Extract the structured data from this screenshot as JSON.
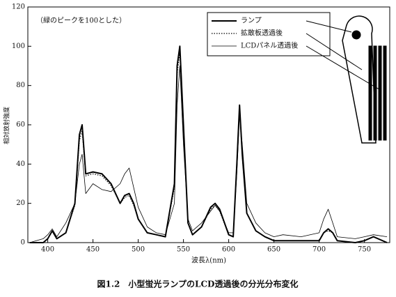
{
  "chart_data": {
    "type": "line",
    "title": "図1.2　小型蛍光ランプのLCD透過後の分光分布変化",
    "annotation": "（緑のピークを100とした）",
    "xlabel": "波長λ(nm)",
    "ylabel": "相対放射強度",
    "x": [
      380,
      395,
      400,
      405,
      410,
      420,
      430,
      435,
      438,
      442,
      450,
      460,
      470,
      480,
      485,
      490,
      495,
      500,
      510,
      520,
      530,
      540,
      543,
      546,
      550,
      555,
      560,
      570,
      580,
      585,
      590,
      600,
      605,
      609,
      612,
      615,
      620,
      630,
      640,
      650,
      660,
      680,
      700,
      705,
      710,
      715,
      720,
      740,
      750,
      760,
      775
    ],
    "series": [
      {
        "name": "ランプ",
        "color": "#000000",
        "linestyle": "solid",
        "linewidth": 2,
        "values": [
          0,
          0,
          2,
          6,
          2,
          5,
          20,
          55,
          60,
          35,
          36,
          35,
          30,
          20,
          24,
          25,
          20,
          12,
          5,
          4,
          3,
          30,
          90,
          100,
          60,
          10,
          4,
          8,
          18,
          20,
          17,
          4,
          3,
          40,
          70,
          45,
          15,
          6,
          3,
          1,
          1,
          1,
          1,
          5,
          7,
          5,
          1,
          0,
          1,
          3,
          0
        ]
      },
      {
        "name": "拡散板透過後",
        "color": "#000000",
        "linestyle": "dotted",
        "linewidth": 1.2,
        "values": [
          0,
          0,
          2,
          6,
          2,
          5,
          19,
          52,
          57,
          34,
          35,
          34,
          29,
          20,
          23,
          24,
          19,
          12,
          5,
          4,
          3,
          28,
          86,
          97,
          58,
          10,
          4,
          8,
          17,
          19,
          16,
          4,
          3,
          38,
          68,
          44,
          15,
          6,
          3,
          1,
          1,
          1,
          1,
          5,
          6,
          5,
          1,
          0,
          1,
          3,
          0
        ]
      },
      {
        "name": "LCDパネル透過後",
        "color": "#000000",
        "linestyle": "solid",
        "linewidth": 0.8,
        "values": [
          0,
          2,
          4,
          7,
          3,
          10,
          20,
          40,
          45,
          25,
          30,
          27,
          26,
          30,
          35,
          38,
          28,
          18,
          8,
          5,
          4,
          20,
          70,
          90,
          50,
          12,
          6,
          10,
          16,
          19,
          16,
          5,
          5,
          35,
          65,
          50,
          20,
          10,
          5,
          3,
          4,
          3,
          5,
          12,
          17,
          10,
          3,
          2,
          3,
          4,
          3
        ]
      }
    ],
    "xlim": [
      378,
      778
    ],
    "ylim": [
      0,
      120
    ],
    "xticks": [
      400,
      450,
      500,
      550,
      600,
      650,
      700,
      750
    ],
    "yticks": [
      0,
      20,
      40,
      60,
      80,
      100,
      120
    ],
    "grid": false
  }
}
